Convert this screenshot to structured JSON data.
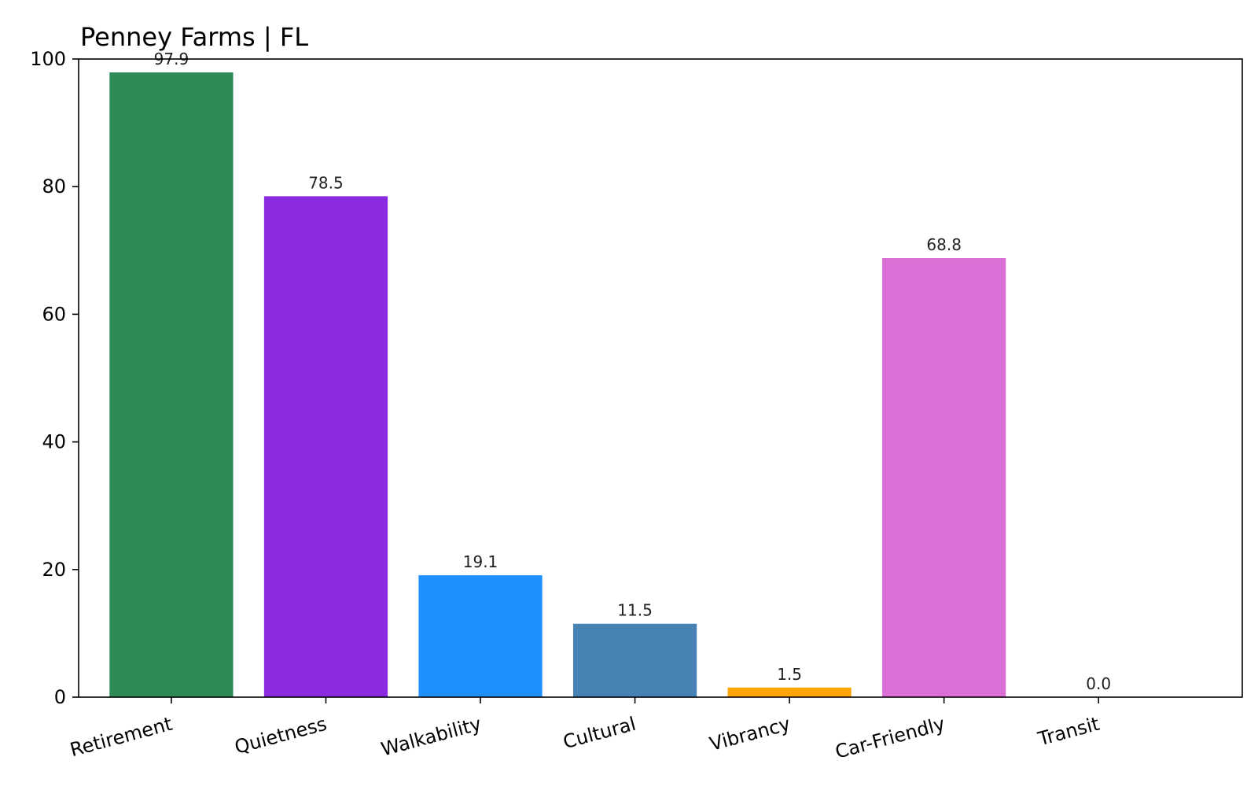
{
  "chart_data": {
    "type": "bar",
    "title": "Penney Farms | FL",
    "xlabel": "",
    "ylabel": "",
    "categories": [
      "Retirement",
      "Quietness",
      "Walkability",
      "Cultural",
      "Vibrancy",
      "Car-Friendly",
      "Transit"
    ],
    "values": [
      97.9,
      78.5,
      19.1,
      11.5,
      1.5,
      68.8,
      0.0
    ],
    "value_labels": [
      "97.9",
      "78.5",
      "19.1",
      "11.5",
      "1.5",
      "68.8",
      "0.0"
    ],
    "colors": [
      "#2e8b57",
      "#8a2be2",
      "#1e90ff",
      "#4682b4",
      "#ffa500",
      "#da70d6",
      "#808080"
    ],
    "ylim": [
      0,
      100
    ],
    "yticks": [
      0,
      20,
      40,
      60,
      80,
      100
    ],
    "ytick_labels": [
      "0",
      "20",
      "40",
      "60",
      "80",
      "100"
    ],
    "grid": false,
    "legend": "none"
  }
}
